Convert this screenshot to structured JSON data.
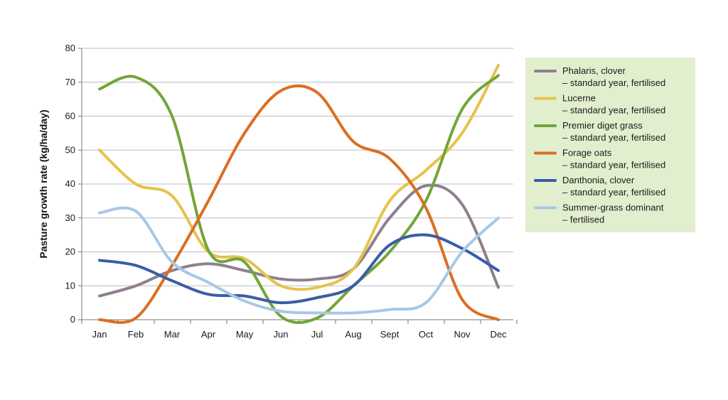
{
  "chart_data": {
    "type": "line",
    "title": "",
    "xlabel": "",
    "ylabel": "Pasture growth rate (kg/ha/day)",
    "categories": [
      "Jan",
      "Feb",
      "Mar",
      "Apr",
      "May",
      "Jun",
      "Jul",
      "Aug",
      "Sept",
      "Oct",
      "Nov",
      "Dec"
    ],
    "ylim": [
      0,
      80
    ],
    "yticks": [
      0,
      10,
      20,
      30,
      40,
      50,
      60,
      70,
      80
    ],
    "grid": "horizontal",
    "legend_position": "right",
    "legend_background": "#e2efcf",
    "series": [
      {
        "name": "Phalaris, clover",
        "name_line2": "– standard year, fertilised",
        "color": "#8e7f8f",
        "values": [
          7,
          10,
          14.5,
          16.5,
          14.5,
          12,
          12,
          15,
          30,
          39.5,
          34,
          9.5
        ]
      },
      {
        "name": "Lucerne",
        "name_line2": "– standard year, fertilised",
        "color": "#e7c24b",
        "values": [
          50,
          40,
          36.5,
          20,
          18,
          10,
          9.5,
          15,
          35,
          44,
          55,
          75
        ]
      },
      {
        "name": "Premier diget grass",
        "name_line2": "– standard year, fertilised",
        "color": "#72a53a",
        "values": [
          68,
          71.5,
          60,
          20.5,
          17,
          1,
          0.5,
          10,
          20,
          35,
          62,
          72
        ]
      },
      {
        "name": "Forage oats",
        "name_line2": "– standard year, fertilised",
        "color": "#db6e24",
        "values": [
          0,
          0.5,
          16,
          35,
          55,
          67.5,
          67,
          52.5,
          47.5,
          33,
          6,
          0
        ]
      },
      {
        "name": "Danthonia, clover",
        "name_line2": "– standard year, fertilised",
        "color": "#3a5da8",
        "values": [
          17.5,
          16,
          11.5,
          7.5,
          7,
          5,
          6.5,
          10,
          22,
          25,
          21,
          14.5
        ]
      },
      {
        "name": "Summer-grass dominant",
        "name_line2": "– fertilised",
        "color": "#a6c8e8",
        "values": [
          31.5,
          32,
          17,
          11,
          5.5,
          2.5,
          2,
          2,
          3,
          5,
          20,
          30
        ]
      }
    ]
  }
}
